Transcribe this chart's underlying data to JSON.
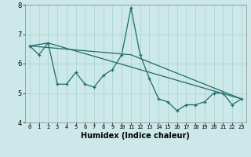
{
  "xlabel": "Humidex (Indice chaleur)",
  "xlim": [
    -0.5,
    23.5
  ],
  "ylim": [
    4,
    8
  ],
  "yticks": [
    4,
    5,
    6,
    7,
    8
  ],
  "xticks": [
    0,
    1,
    2,
    3,
    4,
    5,
    6,
    7,
    8,
    9,
    10,
    11,
    12,
    13,
    14,
    15,
    16,
    17,
    18,
    19,
    20,
    21,
    22,
    23
  ],
  "bg_color": "#cce8e8",
  "grid_color": "#add4d4",
  "line_color": "#1e6b6b",
  "figsize": [
    3.2,
    2.0
  ],
  "dpi": 100,
  "series1_x": [
    0,
    1,
    2,
    3,
    4,
    5,
    6,
    7,
    8,
    9,
    10,
    11,
    12,
    13,
    14,
    15,
    16,
    17,
    18,
    19,
    20,
    21,
    22,
    23
  ],
  "series1_y": [
    6.6,
    6.3,
    6.7,
    5.3,
    5.3,
    5.7,
    5.3,
    5.2,
    5.6,
    5.8,
    6.3,
    7.9,
    6.3,
    5.5,
    4.8,
    4.7,
    4.4,
    4.6,
    4.6,
    4.7,
    5.0,
    5.0,
    4.6,
    4.8
  ],
  "trend1_x": [
    0,
    11,
    23
  ],
  "trend1_y": [
    6.6,
    6.3,
    4.8
  ],
  "trend2_x": [
    0,
    2,
    23
  ],
  "trend2_y": [
    6.6,
    6.7,
    4.8
  ],
  "xlabel_fontsize": 7,
  "tick_fontsize": 5,
  "ytick_fontsize": 6
}
